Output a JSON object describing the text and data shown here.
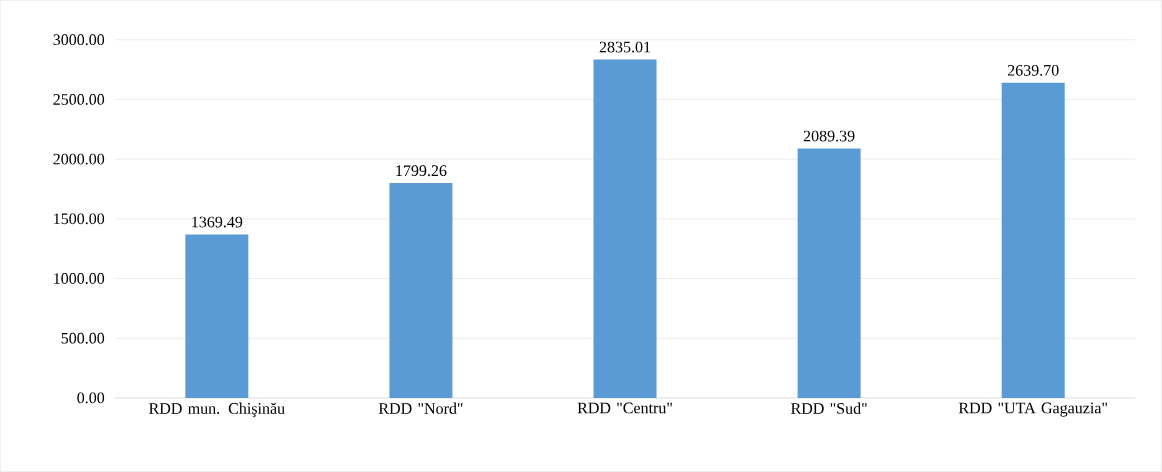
{
  "chart_data": {
    "type": "bar",
    "categories": [
      "RDD mun. Chişinău",
      "RDD \"Nord\"",
      "RDD \"Centru\"",
      "RDD \"Sud\"",
      "RDD \"UTA Gagauzia\""
    ],
    "values": [
      1369.49,
      1799.26,
      2835.01,
      2089.39,
      2639.7
    ],
    "color": "#5b9bd5",
    "ylim": [
      0,
      3000
    ],
    "yticks": [
      {
        "value": 0,
        "label": "0.00"
      },
      {
        "value": 500,
        "label": "500.00"
      },
      {
        "value": 1000,
        "label": "1000.00"
      },
      {
        "value": 1500,
        "label": "1500.00"
      },
      {
        "value": 2000,
        "label": "2000.00"
      },
      {
        "value": 2500,
        "label": "2500.00"
      },
      {
        "value": 3000,
        "label": "3000.00"
      }
    ],
    "grid": "y",
    "value_labels": [
      "1369.49",
      "1799.26",
      "2835.01",
      "2089.39",
      "2639.70"
    ]
  }
}
